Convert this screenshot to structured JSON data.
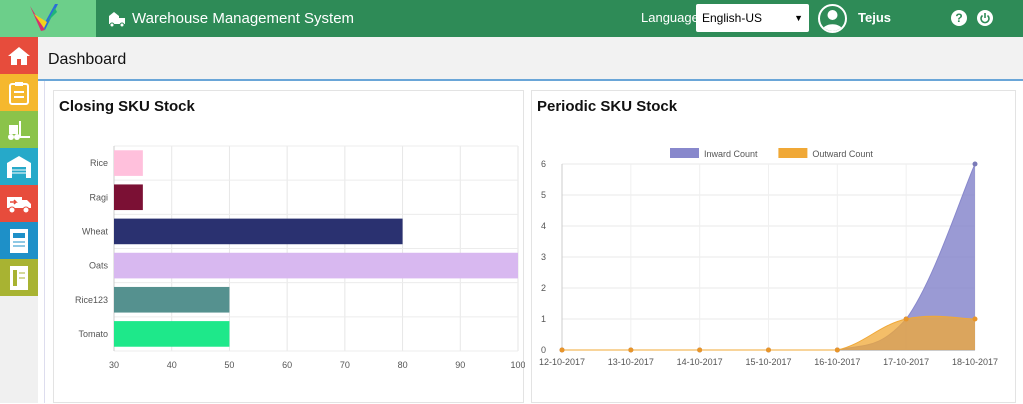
{
  "header": {
    "app_title": "Warehouse Management System",
    "language_label": "Language",
    "language_value": "English-US",
    "username": "Tejus",
    "help_symbol": "?",
    "colors": {
      "bar": "#2e8b57",
      "logo_bg": "#6ccf8a"
    }
  },
  "sidebar": {
    "items": [
      {
        "name": "home-icon",
        "color": "#e74c3c"
      },
      {
        "name": "clipboard-icon",
        "color": "#f5b82e"
      },
      {
        "name": "forklift-icon",
        "color": "#8bc34a"
      },
      {
        "name": "warehouse-icon",
        "color": "#26a9c9"
      },
      {
        "name": "delivery-truck-icon",
        "color": "#e74c3c"
      },
      {
        "name": "report-icon",
        "color": "#1e90c8"
      },
      {
        "name": "ledger-icon",
        "color": "#a8b332"
      }
    ]
  },
  "page": {
    "title": "Dashboard"
  },
  "panels": {
    "closing_title": "Closing SKU Stock",
    "periodic_title": "Periodic SKU Stock"
  },
  "chart_data": [
    {
      "type": "bar",
      "orientation": "horizontal",
      "title": "Closing SKU Stock",
      "categories": [
        "Rice",
        "Ragi",
        "Wheat",
        "Oats",
        "Rice123",
        "Tomato"
      ],
      "values": [
        35,
        35,
        80,
        100,
        50,
        50
      ],
      "colors": [
        "#ffc0dc",
        "#7b1034",
        "#2a3170",
        "#d8b8f0",
        "#55918f",
        "#1ee88a"
      ],
      "xlim": [
        30,
        100
      ],
      "xticks": [
        30,
        40,
        50,
        60,
        70,
        80,
        90,
        100
      ],
      "grid": true
    },
    {
      "type": "area",
      "title": "Periodic SKU Stock",
      "x": [
        "12-10-2017",
        "13-10-2017",
        "14-10-2017",
        "15-10-2017",
        "16-10-2017",
        "17-10-2017",
        "18-10-2017"
      ],
      "series": [
        {
          "name": "Inward Count",
          "values": [
            0,
            0,
            0,
            0,
            0,
            1,
            6
          ],
          "color": "#8888cc"
        },
        {
          "name": "Outward Count",
          "values": [
            0,
            0,
            0,
            0,
            0,
            1,
            1
          ],
          "color": "#f0a836"
        }
      ],
      "ylim": [
        0,
        6
      ],
      "yticks": [
        0,
        1,
        2,
        3,
        4,
        5,
        6
      ],
      "legend": "top",
      "grid": true
    }
  ]
}
